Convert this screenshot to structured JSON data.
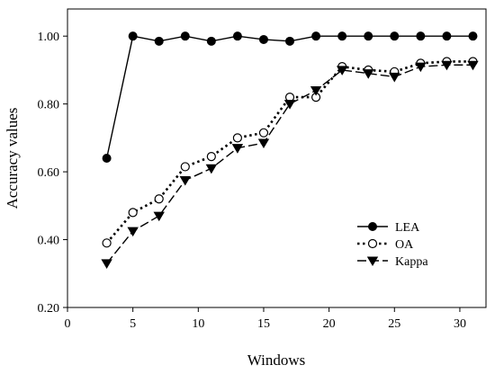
{
  "chart_data": {
    "type": "line",
    "title": "",
    "xlabel": "Windows",
    "ylabel": "Accuracy values",
    "xlim": [
      0,
      32
    ],
    "ylim": [
      0.2,
      1.08
    ],
    "xticks": [
      0,
      5,
      10,
      15,
      20,
      25,
      30
    ],
    "xtick_labels": [
      "0",
      "5",
      "10",
      "15",
      "20",
      "25",
      "30"
    ],
    "yticks": [
      0.2,
      0.4,
      0.6,
      0.8,
      1.0
    ],
    "ytick_labels": [
      "0.20",
      "0.40",
      "0.60",
      "0.80",
      "1.00"
    ],
    "grid": false,
    "legend_position": "right",
    "x": [
      3,
      5,
      7,
      9,
      11,
      13,
      15,
      17,
      19,
      21,
      23,
      25,
      27,
      29,
      31
    ],
    "series": [
      {
        "name": "LEA",
        "marker": "filled-circle",
        "line_style": "solid",
        "values": [
          0.64,
          1.0,
          0.985,
          1.0,
          0.985,
          1.0,
          0.99,
          0.985,
          1.0,
          1.0,
          1.0,
          1.0,
          1.0,
          1.0,
          1.0
        ]
      },
      {
        "name": "OA",
        "marker": "open-circle",
        "line_style": "dotted",
        "values": [
          0.39,
          0.48,
          0.52,
          0.615,
          0.645,
          0.7,
          0.715,
          0.82,
          0.82,
          0.91,
          0.9,
          0.895,
          0.92,
          0.925,
          0.925
        ]
      },
      {
        "name": "Kappa",
        "marker": "filled-triangle-down",
        "line_style": "dashed",
        "values": [
          0.33,
          0.425,
          0.47,
          0.575,
          0.61,
          0.67,
          0.685,
          0.8,
          0.84,
          0.9,
          0.89,
          0.88,
          0.91,
          0.915,
          0.915
        ]
      }
    ]
  }
}
